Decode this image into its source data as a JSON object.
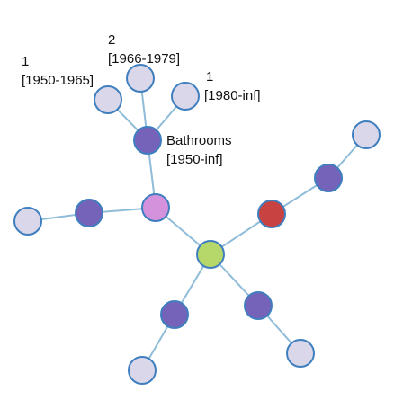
{
  "nodes": [
    {
      "label": [
        "1",
        "[1950-1965]"
      ]
    },
    {
      "label": [
        "2",
        "[1966-1979]"
      ]
    },
    {
      "label": [
        "1",
        "[1980-inf]"
      ]
    },
    {
      "label": [
        "Bathrooms",
        "[1950-inf]"
      ]
    }
  ]
}
